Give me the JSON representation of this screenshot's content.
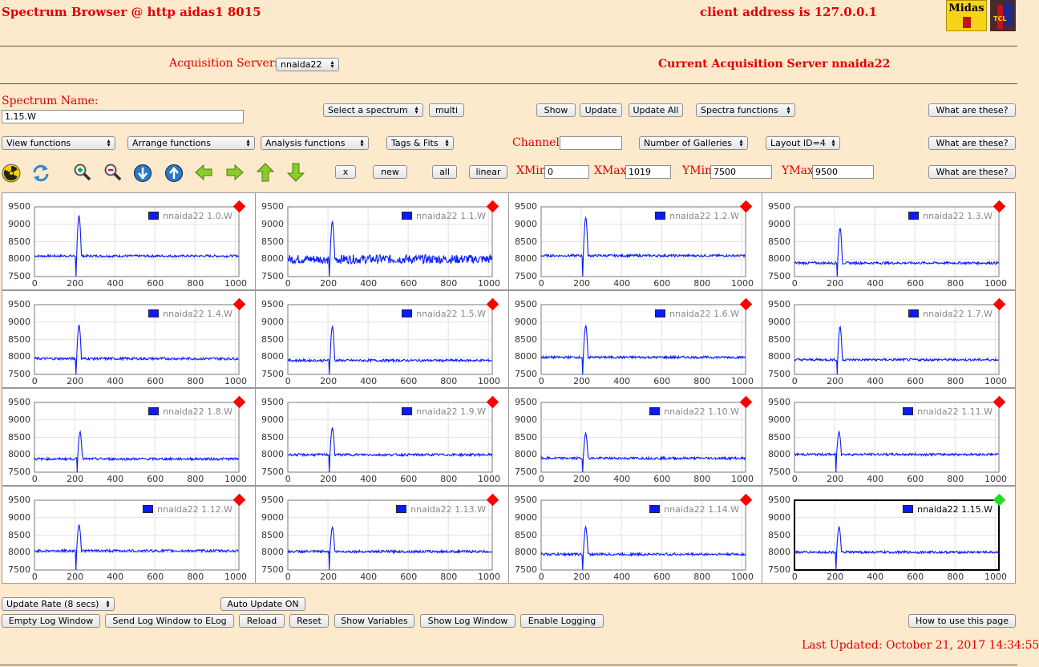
{
  "header": {
    "title": "Spectrum Browser @ http aidas1 8015",
    "client": "client address is 127.0.0.1",
    "logo1": "Midas",
    "logo2": "TCL"
  },
  "servers": {
    "label": "Acquisition Servers",
    "selected": "nnaida22",
    "current": "Current Acquisition Server nnaida22"
  },
  "spectrum": {
    "label": "Spectrum Name:",
    "value": "1.15.W"
  },
  "toolbar1": {
    "select_spectrum": "Select a spectrum",
    "multi": "multi",
    "show": "Show",
    "update": "Update",
    "update_all": "Update All",
    "spectra_functions": "Spectra functions",
    "help": "What are these?"
  },
  "toolbar2": {
    "view_functions": "View functions",
    "arrange_functions": "Arrange functions",
    "analysis_functions": "Analysis functions",
    "tags_fits": "Tags & Fits",
    "channel_label": "Channel:",
    "channel_value": "",
    "galleries": "Number of Galleries",
    "layout": "Layout ID=4",
    "help": "What are these?"
  },
  "toolbar3": {
    "x": "x",
    "new": "new",
    "all": "all",
    "linear": "linear",
    "xmin_label": "XMin",
    "xmin": "0",
    "xmax_label": "XMax",
    "xmax": "1019",
    "ymin_label": "YMin",
    "ymin": "7500",
    "ymax_label": "YMax",
    "ymax": "9500",
    "help": "What are these?"
  },
  "icons": [
    "radiation-icon",
    "refresh-icon",
    "zoom-in-icon",
    "zoom-out-icon",
    "arrow-down-circle-icon",
    "arrow-up-circle-icon",
    "arrow-left-icon",
    "arrow-right-icon",
    "arrow-up-icon",
    "arrow-down-icon"
  ],
  "colors": {
    "series": "#0a1cff",
    "marker_inactive": "#ff0000",
    "marker_active": "#22dd22",
    "accent": "#e00000",
    "background": "#fde9cc"
  },
  "chart_data": {
    "type": "line",
    "xlim": [
      0,
      1019
    ],
    "ylim": [
      7500,
      9500
    ],
    "x_ticks": [
      "0",
      "200",
      "400",
      "600",
      "800",
      "1000"
    ],
    "y_ticks": [
      "9500",
      "9000",
      "8500",
      "8000",
      "7500"
    ],
    "grid": true,
    "legend": "top-right",
    "active_panel": 15,
    "panels": [
      {
        "name": "nnaida22 1.0.W",
        "base": 8090,
        "peak": 9250,
        "dip_x": 210
      },
      {
        "name": "nnaida22 1.1.W",
        "base": 8000,
        "peak": 9080,
        "dip_x": 210
      },
      {
        "name": "nnaida22 1.2.W",
        "base": 8100,
        "peak": 9200,
        "dip_x": 210
      },
      {
        "name": "nnaida22 1.3.W",
        "base": 7890,
        "peak": 8900,
        "dip_x": 215
      },
      {
        "name": "nnaida22 1.4.W",
        "base": 7950,
        "peak": 8920,
        "dip_x": 210
      },
      {
        "name": "nnaida22 1.5.W",
        "base": 7900,
        "peak": 8880,
        "dip_x": 210
      },
      {
        "name": "nnaida22 1.6.W",
        "base": 7990,
        "peak": 8900,
        "dip_x": 210
      },
      {
        "name": "nnaida22 1.7.W",
        "base": 7920,
        "peak": 8880,
        "dip_x": 215
      },
      {
        "name": "nnaida22 1.8.W",
        "base": 7880,
        "peak": 8660,
        "dip_x": 215
      },
      {
        "name": "nnaida22 1.9.W",
        "base": 8000,
        "peak": 8770,
        "dip_x": 210
      },
      {
        "name": "nnaida22 1.10.W",
        "base": 7900,
        "peak": 8620,
        "dip_x": 210
      },
      {
        "name": "nnaida22 1.11.W",
        "base": 8010,
        "peak": 8660,
        "dip_x": 210
      },
      {
        "name": "nnaida22 1.12.W",
        "base": 8050,
        "peak": 8800,
        "dip_x": 210
      },
      {
        "name": "nnaida22 1.13.W",
        "base": 8030,
        "peak": 8730,
        "dip_x": 210
      },
      {
        "name": "nnaida22 1.14.W",
        "base": 7950,
        "peak": 8730,
        "dip_x": 210
      },
      {
        "name": "nnaida22 1.15.W",
        "base": 8010,
        "peak": 8720,
        "dip_x": 210
      }
    ]
  },
  "footer": {
    "update_rate": "Update Rate (8 secs)",
    "auto_update": "Auto Update ON",
    "empty_log": "Empty Log Window",
    "send_log": "Send Log Window to ELog",
    "reload": "Reload",
    "reset": "Reset",
    "show_variables": "Show Variables",
    "show_log": "Show Log Window",
    "enable_logging": "Enable Logging",
    "how_to": "How to use this page",
    "last_updated": "Last Updated: October 21, 2017 14:34:55"
  }
}
